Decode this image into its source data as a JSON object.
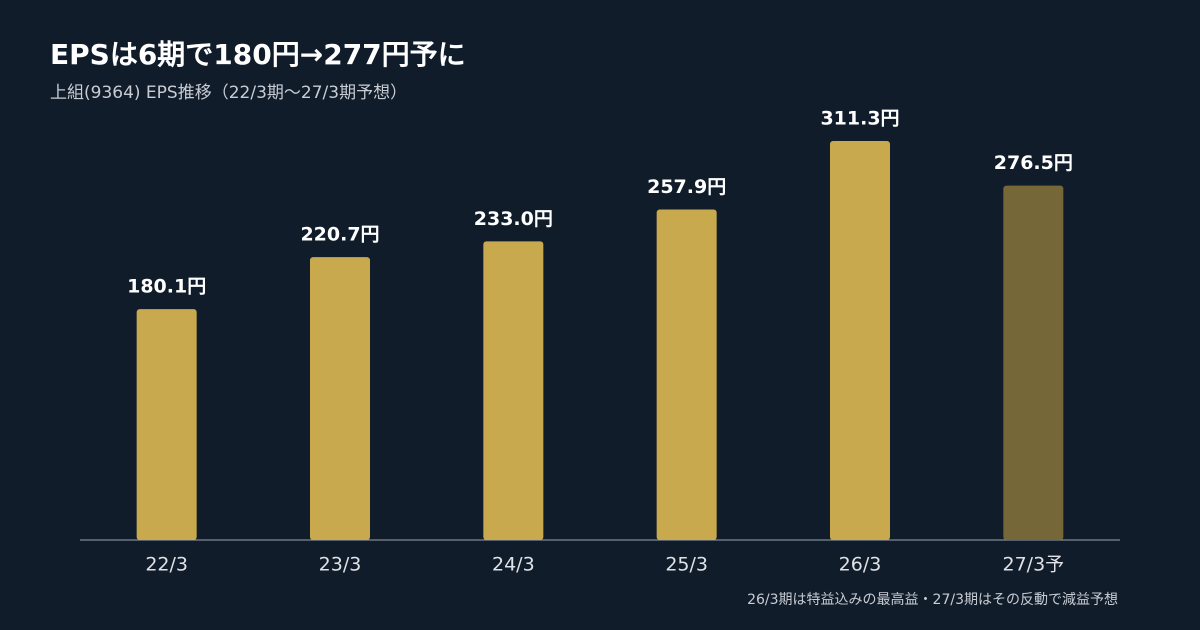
{
  "chart_data": {
    "type": "bar",
    "title": "EPSは6期で180円→277円予に",
    "subtitle": "上組(9364) EPS推移（22/3期〜27/3期予想）",
    "categories": [
      "22/3",
      "23/3",
      "24/3",
      "25/3",
      "26/3",
      "27/3予"
    ],
    "values": [
      180.1,
      220.7,
      233.0,
      257.9,
      311.3,
      276.5
    ],
    "value_labels": [
      "180.1円",
      "220.7円",
      "233.0円",
      "257.9円",
      "311.3円",
      "276.5円"
    ],
    "colors": [
      "#c8a94e",
      "#c8a94e",
      "#c8a94e",
      "#c8a94e",
      "#c8a94e",
      "#766739"
    ],
    "ylim": [
      0,
      311.3
    ],
    "annotation": "26/3期は特益込みの最高益・27/3期はその反動で減益予想"
  }
}
